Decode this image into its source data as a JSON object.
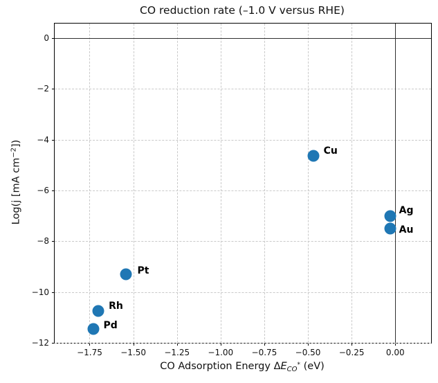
{
  "figure": {
    "background": "#ffffff",
    "text_color": "#111111"
  },
  "chart_data": {
    "type": "scatter",
    "title": "CO reduction rate (–1.0 V versus RHE)",
    "xlabel": "CO Adsorption Energy ΔE_CO* (eV)",
    "ylabel": "Log(j [mA cm−2])",
    "xlim": [
      -1.95,
      0.205
    ],
    "ylim": [
      -12,
      0.57
    ],
    "x_ticks": [
      -1.75,
      -1.5,
      -1.25,
      -1.0,
      -0.75,
      -0.5,
      -0.25,
      0.0
    ],
    "x_tick_labels": [
      "−1.75",
      "−1.50",
      "−1.25",
      "−1.00",
      "−0.75",
      "−0.50",
      "−0.25",
      "0.00"
    ],
    "y_ticks": [
      0,
      -2,
      -4,
      -6,
      -8,
      -10,
      -12
    ],
    "y_tick_labels": [
      "0",
      "−2",
      "−4",
      "−6",
      "−8",
      "−10",
      "−12"
    ],
    "grid": "dashed",
    "grid_color": "#c9c9c9",
    "legend": "none",
    "marker_color": "#1f77b4",
    "marker_size_px": 17,
    "reference_lines": {
      "horizontal_y": 0,
      "vertical_x": 0,
      "color": "#2f2f2f"
    },
    "points": [
      {
        "label": "Pd",
        "x": -1.73,
        "y": -11.45,
        "label_offset": [
          15,
          -5
        ]
      },
      {
        "label": "Rh",
        "x": -1.7,
        "y": -10.75,
        "label_offset": [
          15,
          -7
        ]
      },
      {
        "label": "Pt",
        "x": -1.54,
        "y": -9.3,
        "label_offset": [
          16,
          -5
        ]
      },
      {
        "label": "Cu",
        "x": -0.47,
        "y": -4.65,
        "label_offset": [
          15,
          -7
        ]
      },
      {
        "label": "Ag",
        "x": -0.03,
        "y": -7.0,
        "label_offset": [
          13,
          -8
        ]
      },
      {
        "label": "Au",
        "x": -0.03,
        "y": -7.5,
        "label_offset": [
          13,
          2
        ]
      }
    ]
  },
  "labels": {
    "xlabel_prefix": "CO Adsorption Energy Δ",
    "xlabel_symbol": "E",
    "xlabel_sub": "CO",
    "xlabel_sup": "*",
    "xlabel_suffix": " (eV)",
    "ylabel_prefix": "Log(j [mA cm",
    "ylabel_sup": "−2",
    "ylabel_suffix": "])"
  }
}
